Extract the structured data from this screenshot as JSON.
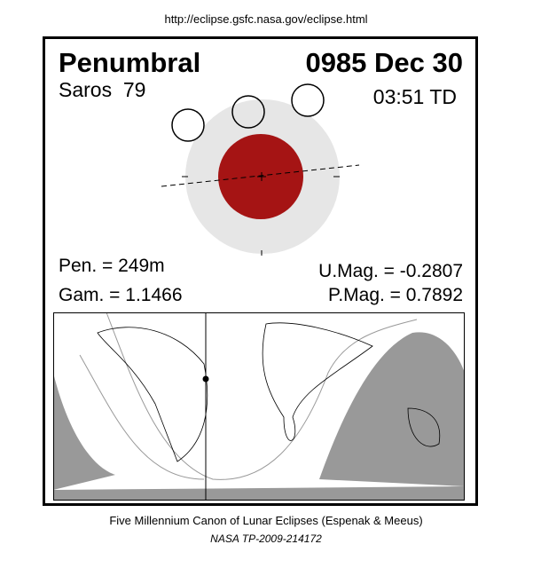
{
  "header": {
    "url": "http://eclipse.gsfc.nasa.gov/eclipse.html"
  },
  "eclipse": {
    "type": "Penumbral",
    "date": "0985 Dec 30",
    "saros": "Saros  79",
    "time": "03:51 TD",
    "pen": "Pen. = 249m",
    "gam": "Gam. = 1.1466",
    "umag": "U.Mag. = -0.2807",
    "pmag": "P.Mag. = 0.7892"
  },
  "footer": {
    "line1": "Five Millennium Canon of Lunar Eclipses (Espenak & Meeus)",
    "line2": "NASA TP-2009-214172"
  }
}
